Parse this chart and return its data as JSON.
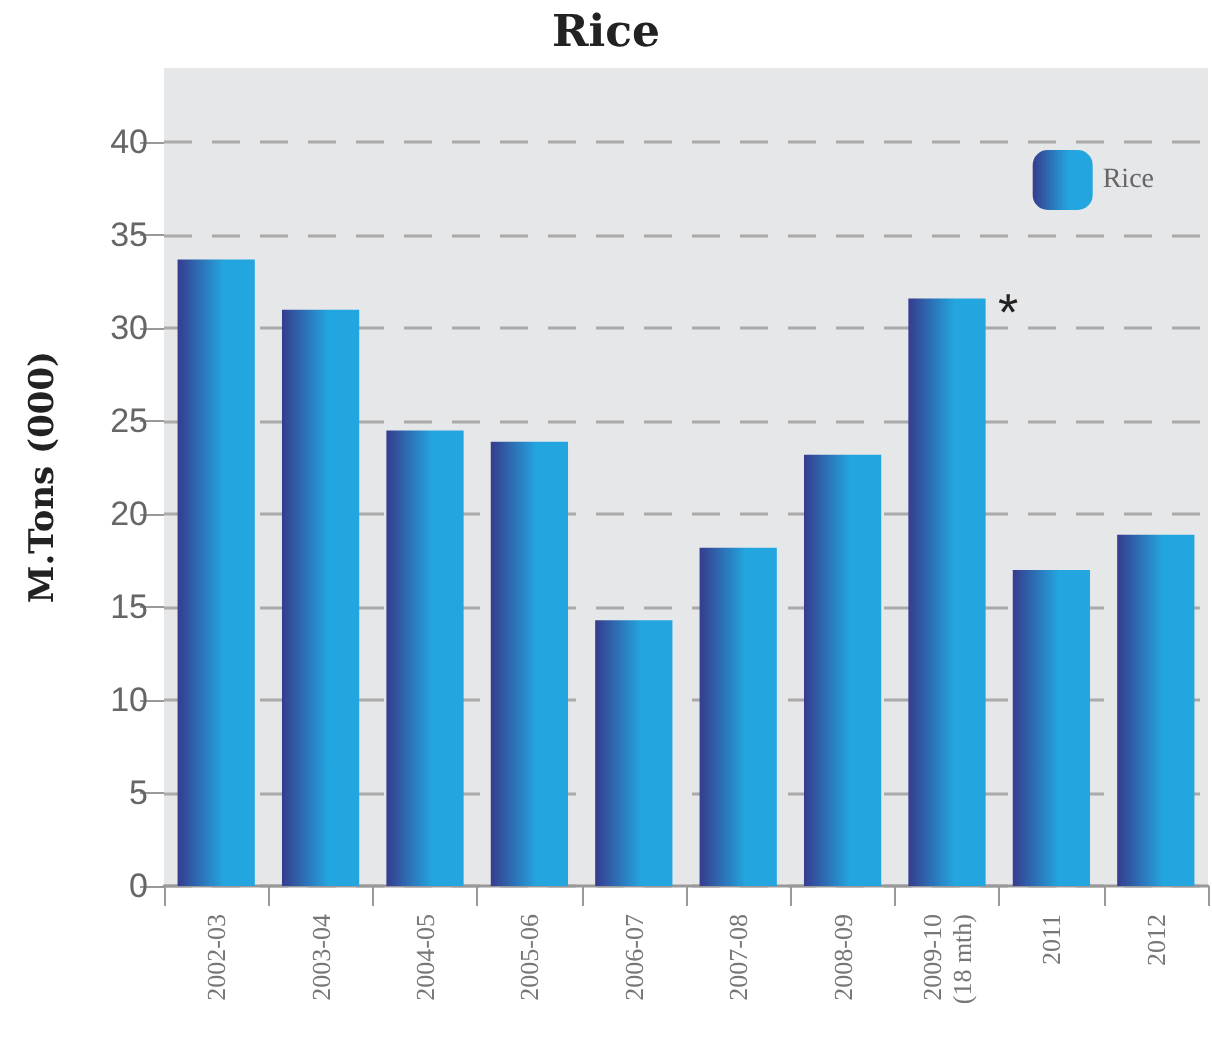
{
  "chart_data": {
    "type": "bar",
    "title": "Rice",
    "ylabel": "M.Tons (000)",
    "categories": [
      "2002-03",
      "2003-04",
      "2004-05",
      "2005-06",
      "2006-07",
      "2007-08",
      "2008-09",
      "2009-10\n(18 mth)",
      "2011",
      "2012"
    ],
    "series": [
      {
        "name": "Rice",
        "color": "#23a6df",
        "values": [
          33.7,
          31.0,
          24.5,
          23.9,
          14.3,
          18.2,
          23.2,
          31.6,
          17.0,
          18.9
        ]
      }
    ],
    "annotations": [
      {
        "text": "*",
        "x": "2009-10\n(18 mth)",
        "y": 31.6
      }
    ],
    "ylim": [
      0,
      44
    ],
    "yticks": [
      0,
      5,
      10,
      15,
      20,
      25,
      30,
      35,
      40
    ],
    "grid": "y",
    "legend": "top right"
  }
}
